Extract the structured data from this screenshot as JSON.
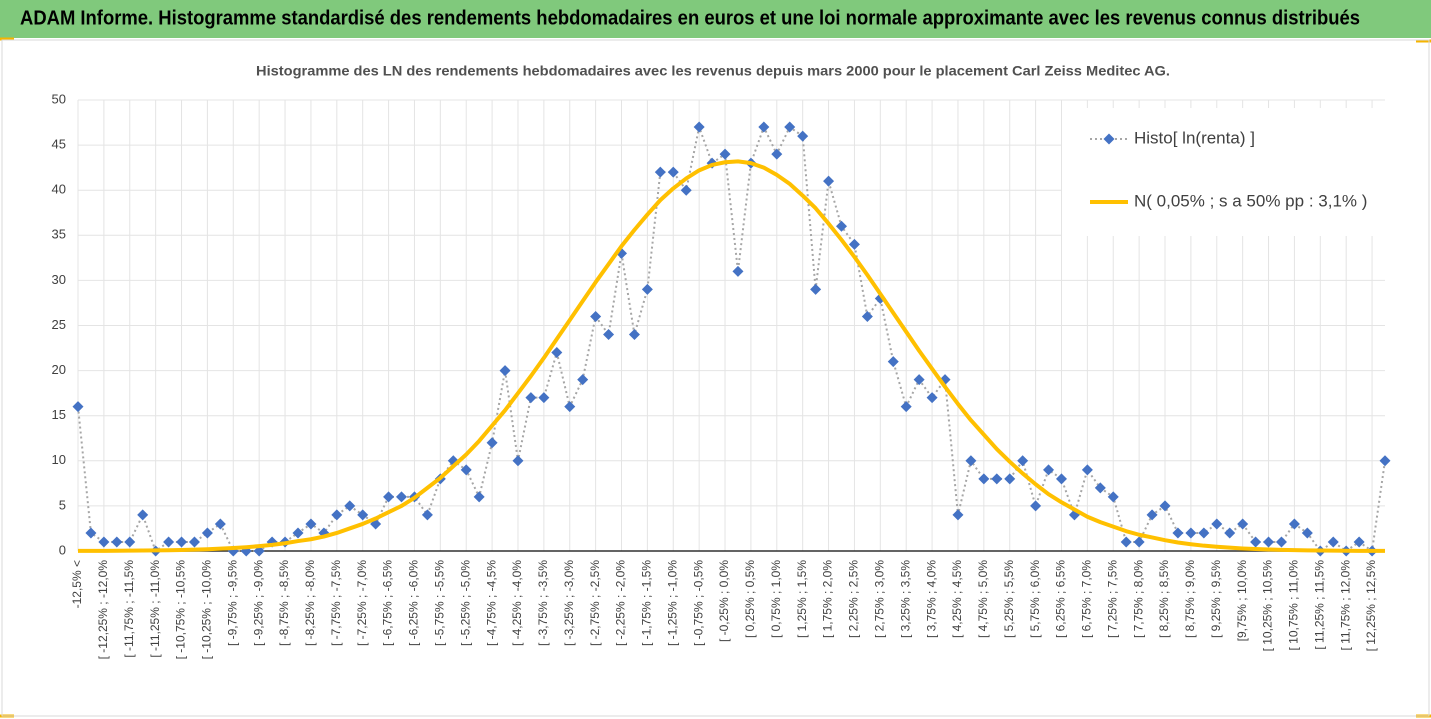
{
  "chart_data": {
    "type": "line",
    "title": "ADAM Informe. Histogramme standardisé des rendements hebdomadaires en euros et une loi normale approximante avec les revenus connus distribués",
    "subtitle": "Histogramme des LN des rendements hebdomadaires avec les revenus depuis mars 2000 pour le placement Carl Zeiss Meditec AG.",
    "categories": [
      "-12,5% <",
      null,
      "[ -12,25% ; -12,0%",
      null,
      "[ -11,75% ; -11,5%",
      null,
      "[ -11,25% ; -11,0%",
      null,
      "[ -10,75% ; -10,5%",
      null,
      "[ -10,25% ; -10,0%",
      null,
      "[ -9,75% ; -9,5%",
      null,
      "[ -9,25% ; -9,0%",
      null,
      "[ -8,75% ; -8,5%",
      null,
      "[ -8,25% ; -8,0%",
      null,
      "[ -7,75% ; -7,5%",
      null,
      "[ -7,25% ; -7,0%",
      null,
      "[ -6,75% ; -6,5%",
      null,
      "[ -6,25% ; -6,0%",
      null,
      "[ -5,75% ; -5,5%",
      null,
      "[ -5,25% ; -5,0%",
      null,
      "[ -4,75% ; -4,5%",
      null,
      "[ -4,25% ; -4,0%",
      null,
      "[ -3,75% ; -3,5%",
      null,
      "[ -3,25% ; -3,0%",
      null,
      "[ -2,75% ; -2,5%",
      null,
      "[ -2,25% ; -2,0%",
      null,
      "[ -1,75% ; -1,5%",
      null,
      "[ -1,25% ; -1,0%",
      null,
      "[ -0,75% ; -0,5%",
      null,
      "[ -0,25% ; 0,0%",
      null,
      "[ 0,25% ; 0,5%",
      null,
      "[ 0,75% ; 1,0%",
      null,
      "[ 1,25% ; 1,5%",
      null,
      "[ 1,75% ; 2,0%",
      null,
      "[ 2,25% ; 2,5%",
      null,
      "[ 2,75% ; 3,0%",
      null,
      "[ 3,25% ; 3,5%",
      null,
      "[ 3,75% ; 4,0%",
      null,
      "[ 4,25% ; 4,5%",
      null,
      "[ 4,75% ; 5,0%",
      null,
      "[ 5,25% ; 5,5%",
      null,
      "[ 5,75% ; 6,0%",
      null,
      "[ 6,25% ; 6,5%",
      null,
      "[ 6,75% ; 7,0%",
      null,
      "[ 7,25% ; 7,5%",
      null,
      "[ 7,75% ; 8,0%",
      null,
      "[ 8,25% ; 8,5%",
      null,
      "[ 8,75% ; 9,0%",
      null,
      "[ 9,25% ; 9,5%",
      null,
      "[9,75% ; 10,0%",
      null,
      "[ 10,25% ; 10,5%",
      null,
      "[ 10,75% ; 11,0%",
      null,
      "[ 11,25% ; 11,5%",
      null,
      "[ 11,75% ; 12,0%",
      null,
      "[ 12,25% ; 12,5%",
      null
    ],
    "series": [
      {
        "name": "Histo[ ln(renta) ]",
        "color": "#4472c4",
        "line_color": "#a6a6a6",
        "line_style": "dotted",
        "marker": "diamond",
        "values": [
          16,
          2,
          1,
          1,
          1,
          4,
          0,
          1,
          1,
          1,
          2,
          3,
          0,
          0,
          0,
          1,
          1,
          2,
          3,
          2,
          4,
          5,
          4,
          3,
          6,
          6,
          6,
          4,
          8,
          10,
          9,
          6,
          12,
          20,
          10,
          17,
          17,
          22,
          16,
          19,
          26,
          24,
          33,
          24,
          29,
          42,
          42,
          40,
          47,
          43,
          44,
          31,
          43,
          47,
          44,
          47,
          46,
          29,
          41,
          36,
          34,
          26,
          28,
          21,
          16,
          19,
          17,
          19,
          4,
          10,
          8,
          8,
          8,
          10,
          5,
          9,
          8,
          4,
          9,
          7,
          6,
          1,
          1,
          4,
          5,
          2,
          2,
          2,
          3,
          2,
          3,
          1,
          1,
          1,
          3,
          2,
          0,
          1,
          0,
          1,
          0,
          10
        ]
      },
      {
        "name": "N( 0,05% ; s a 50% pp : 3,1% )",
        "color": "#ffc000",
        "line_style": "solid",
        "marker": "none",
        "values": [
          0.01,
          0.01,
          0.02,
          0.03,
          0.04,
          0.05,
          0.07,
          0.09,
          0.11,
          0.15,
          0.2,
          0.26,
          0.33,
          0.42,
          0.54,
          0.68,
          0.86,
          1.1,
          1.3,
          1.6,
          2.0,
          2.5,
          3.0,
          3.6,
          4.3,
          5.0,
          5.9,
          7.0,
          8.1,
          9.4,
          10.7,
          12.2,
          13.9,
          15.6,
          17.5,
          19.4,
          21.4,
          23.5,
          25.6,
          27.7,
          29.8,
          31.8,
          33.8,
          35.6,
          37.3,
          38.9,
          40.2,
          41.3,
          42.2,
          42.8,
          43.1,
          43.2,
          43.0,
          42.5,
          41.7,
          40.7,
          39.4,
          38.0,
          36.3,
          34.5,
          32.6,
          30.6,
          28.5,
          26.4,
          24.3,
          22.2,
          20.2,
          18.2,
          16.3,
          14.5,
          12.9,
          11.3,
          9.9,
          8.6,
          7.4,
          6.3,
          5.4,
          4.6,
          3.8,
          3.2,
          2.7,
          2.2,
          1.8,
          1.5,
          1.2,
          0.94,
          0.75,
          0.59,
          0.47,
          0.37,
          0.28,
          0.22,
          0.17,
          0.13,
          0.1,
          0.07,
          0.05,
          0.04,
          0.03,
          0.02,
          0.02,
          0.01
        ]
      }
    ],
    "ylim": [
      0,
      50
    ],
    "yticks": [
      0,
      5,
      10,
      15,
      20,
      25,
      30,
      35,
      40,
      45,
      50
    ],
    "grid": true,
    "legend": "upper right"
  }
}
